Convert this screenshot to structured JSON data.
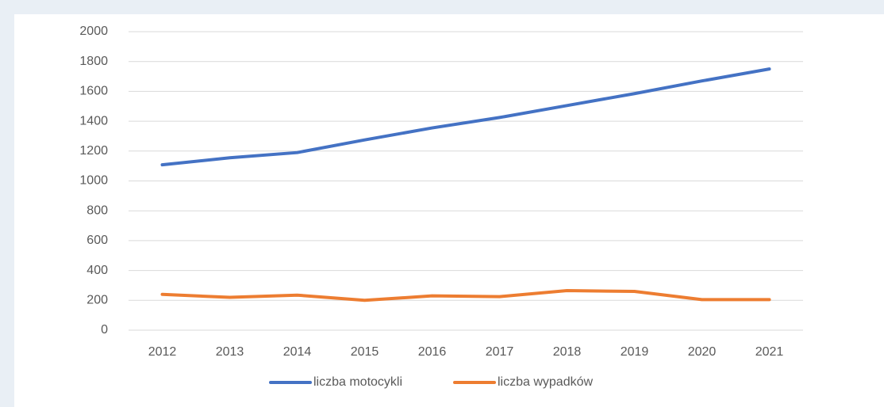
{
  "chart_data": {
    "type": "line",
    "categories": [
      "2012",
      "2013",
      "2014",
      "2015",
      "2016",
      "2017",
      "2018",
      "2019",
      "2020",
      "2021"
    ],
    "series": [
      {
        "name": "liczba motocykli",
        "color": "#4472c4",
        "values": [
          1108,
          1155,
          1190,
          1275,
          1355,
          1425,
          1505,
          1585,
          1670,
          1750
        ]
      },
      {
        "name": "liczba wypadków",
        "color": "#ed7d31",
        "values": [
          240,
          220,
          235,
          200,
          230,
          225,
          265,
          260,
          205,
          205
        ]
      }
    ],
    "ylim": [
      0,
      2000
    ],
    "yticks": [
      0,
      200,
      400,
      600,
      800,
      1000,
      1200,
      1400,
      1600,
      1800,
      2000
    ],
    "grid": true,
    "legend": "bottom"
  }
}
